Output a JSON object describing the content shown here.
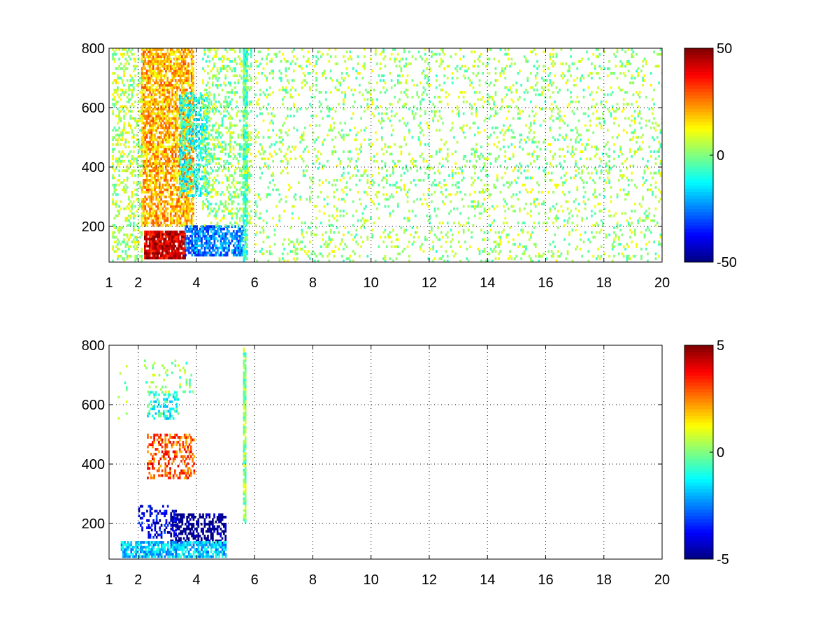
{
  "chart_data": [
    {
      "type": "heatmap",
      "title": "",
      "xlabel": "",
      "ylabel": "",
      "xlim": [
        1,
        20
      ],
      "ylim": [
        80,
        800
      ],
      "x_ticks": [
        "1",
        "2",
        "4",
        "6",
        "8",
        "10",
        "12",
        "14",
        "16",
        "18",
        "20"
      ],
      "y_ticks": [
        "200",
        "400",
        "600",
        "800"
      ],
      "grid": true,
      "colormap": "jet",
      "colorbar": {
        "min": -50,
        "max": 50,
        "ticks": [
          "50",
          "0",
          "-50"
        ]
      },
      "features": [
        {
          "x": [
            2.1,
            3.9
          ],
          "y": [
            200,
            800
          ],
          "value": 20,
          "density": 0.7
        },
        {
          "x": [
            2.2,
            3.6
          ],
          "y": [
            90,
            180
          ],
          "value": 42,
          "density": 0.9
        },
        {
          "x": [
            3.6,
            5.6
          ],
          "y": [
            100,
            200
          ],
          "value": -25,
          "density": 0.7
        },
        {
          "x": [
            3.4,
            4.4
          ],
          "y": [
            300,
            650
          ],
          "value": -10,
          "density": 0.5
        },
        {
          "x": [
            1.1,
            2.1
          ],
          "y": [
            80,
            800
          ],
          "value": 5,
          "density": 0.3
        },
        {
          "x": [
            4.2,
            5.9
          ],
          "y": [
            200,
            800
          ],
          "value": 2,
          "density": 0.3
        },
        {
          "x": [
            5.6,
            5.75
          ],
          "y": [
            80,
            800
          ],
          "value": -5,
          "density": 0.8
        },
        {
          "x": [
            6.0,
            20.0
          ],
          "y": [
            80,
            800
          ],
          "value": 3,
          "density": 0.12
        }
      ]
    },
    {
      "type": "heatmap",
      "title": "",
      "xlabel": "",
      "ylabel": "",
      "xlim": [
        1,
        20
      ],
      "ylim": [
        80,
        800
      ],
      "x_ticks": [
        "1",
        "2",
        "4",
        "6",
        "8",
        "10",
        "12",
        "14",
        "16",
        "18",
        "20"
      ],
      "y_ticks": [
        "200",
        "400",
        "600",
        "800"
      ],
      "grid": true,
      "colormap": "jet",
      "colorbar": {
        "min": -5,
        "max": 5,
        "ticks": [
          "5",
          "0",
          "-5"
        ]
      },
      "features": [
        {
          "x": [
            2.3,
            3.9
          ],
          "y": [
            350,
            500
          ],
          "value": 3,
          "density": 0.4
        },
        {
          "x": [
            2.3,
            3.4
          ],
          "y": [
            550,
            640
          ],
          "value": -1,
          "density": 0.35
        },
        {
          "x": [
            2.2,
            3.9
          ],
          "y": [
            640,
            750
          ],
          "value": 0,
          "density": 0.12
        },
        {
          "x": [
            3.1,
            5.0
          ],
          "y": [
            130,
            230
          ],
          "value": -5,
          "density": 0.55
        },
        {
          "x": [
            2.0,
            3.3
          ],
          "y": [
            150,
            260
          ],
          "value": -4,
          "density": 0.35
        },
        {
          "x": [
            1.4,
            5.0
          ],
          "y": [
            85,
            140
          ],
          "value": -1.8,
          "density": 0.75
        },
        {
          "x": [
            5.6,
            5.7
          ],
          "y": [
            200,
            790
          ],
          "value": 0,
          "density": 0.85
        },
        {
          "x": [
            1.3,
            1.6
          ],
          "y": [
            550,
            740
          ],
          "value": 0,
          "density": 0.08
        }
      ]
    }
  ]
}
